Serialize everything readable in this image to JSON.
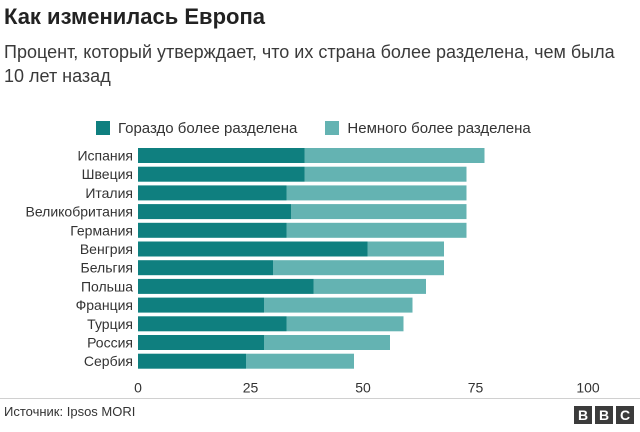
{
  "title": "Как изменилась Европа",
  "subtitle": "Процент, который утверждает, что их страна более разделена, чем была 10 лет назад",
  "source": "Источник: Ipsos MORI",
  "logo_text": "BBC",
  "colors": {
    "much_more": "#0f7f7f",
    "slightly_more": "#64b3b2"
  },
  "chart_data": {
    "type": "bar",
    "orientation": "horizontal",
    "stacked": true,
    "categories": [
      "Испания",
      "Швеция",
      "Италия",
      "Великобритания",
      "Германия",
      "Венгрия",
      "Бельгия",
      "Польша",
      "Франция",
      "Турция",
      "Россия",
      "Сербия"
    ],
    "series": [
      {
        "name": "Гораздо более разделена",
        "values": [
          37,
          37,
          33,
          34,
          33,
          51,
          30,
          39,
          28,
          33,
          28,
          24
        ]
      },
      {
        "name": "Немного более разделена",
        "values": [
          40,
          36,
          40,
          39,
          40,
          17,
          38,
          25,
          33,
          26,
          28,
          24
        ]
      }
    ],
    "xlim": [
      0,
      100
    ],
    "xticks": [
      0,
      25,
      50,
      75,
      100
    ],
    "legend_position": "top",
    "grid": false
  }
}
